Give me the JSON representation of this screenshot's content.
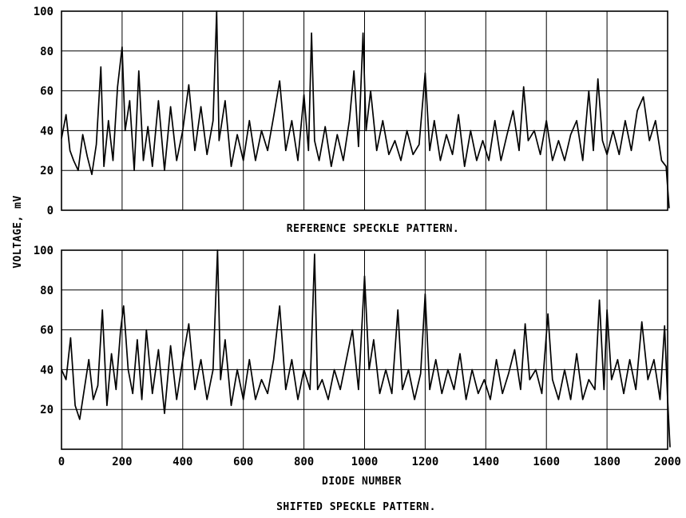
{
  "chart_data": [
    {
      "type": "line",
      "title": "",
      "caption": "REFERENCE SPECKLE PATTERN.",
      "xlabel": "",
      "ylabel": "VOLTAGE, mV",
      "xlim": [
        0,
        2000
      ],
      "ylim": [
        0,
        100
      ],
      "x_ticks": [
        0,
        200,
        400,
        600,
        800,
        1000,
        1200,
        1400,
        1600,
        1800,
        2000
      ],
      "y_ticks": [
        0,
        20,
        40,
        60,
        80,
        100
      ],
      "y_tick_labels": [
        "0",
        "20",
        "40",
        "60",
        "80",
        "100"
      ],
      "x_tick_labels_shown": false,
      "grid": true,
      "series": [
        {
          "points": [
            [
              0,
              36
            ],
            [
              15,
              48
            ],
            [
              28,
              30
            ],
            [
              40,
              25
            ],
            [
              55,
              20
            ],
            [
              70,
              38
            ],
            [
              85,
              27
            ],
            [
              100,
              18
            ],
            [
              115,
              33
            ],
            [
              130,
              72
            ],
            [
              140,
              22
            ],
            [
              155,
              45
            ],
            [
              170,
              25
            ],
            [
              185,
              62
            ],
            [
              200,
              82
            ],
            [
              210,
              40
            ],
            [
              225,
              55
            ],
            [
              240,
              20
            ],
            [
              255,
              70
            ],
            [
              270,
              25
            ],
            [
              285,
              42
            ],
            [
              300,
              22
            ],
            [
              320,
              55
            ],
            [
              340,
              20
            ],
            [
              360,
              52
            ],
            [
              380,
              25
            ],
            [
              400,
              40
            ],
            [
              420,
              63
            ],
            [
              440,
              30
            ],
            [
              460,
              52
            ],
            [
              480,
              28
            ],
            [
              500,
              45
            ],
            [
              512,
              100
            ],
            [
              520,
              35
            ],
            [
              540,
              55
            ],
            [
              560,
              22
            ],
            [
              580,
              38
            ],
            [
              600,
              25
            ],
            [
              620,
              45
            ],
            [
              640,
              25
            ],
            [
              660,
              40
            ],
            [
              680,
              30
            ],
            [
              700,
              47
            ],
            [
              720,
              65
            ],
            [
              740,
              30
            ],
            [
              760,
              45
            ],
            [
              780,
              25
            ],
            [
              800,
              58
            ],
            [
              815,
              30
            ],
            [
              825,
              89
            ],
            [
              835,
              35
            ],
            [
              850,
              25
            ],
            [
              870,
              42
            ],
            [
              890,
              22
            ],
            [
              910,
              38
            ],
            [
              930,
              25
            ],
            [
              950,
              45
            ],
            [
              965,
              70
            ],
            [
              980,
              32
            ],
            [
              995,
              89
            ],
            [
              1005,
              40
            ],
            [
              1020,
              60
            ],
            [
              1040,
              30
            ],
            [
              1060,
              45
            ],
            [
              1080,
              28
            ],
            [
              1100,
              35
            ],
            [
              1120,
              25
            ],
            [
              1140,
              40
            ],
            [
              1160,
              28
            ],
            [
              1180,
              33
            ],
            [
              1200,
              69
            ],
            [
              1215,
              30
            ],
            [
              1230,
              45
            ],
            [
              1250,
              25
            ],
            [
              1270,
              38
            ],
            [
              1290,
              28
            ],
            [
              1310,
              48
            ],
            [
              1330,
              22
            ],
            [
              1350,
              40
            ],
            [
              1370,
              25
            ],
            [
              1390,
              35
            ],
            [
              1410,
              25
            ],
            [
              1430,
              45
            ],
            [
              1450,
              25
            ],
            [
              1470,
              38
            ],
            [
              1490,
              50
            ],
            [
              1510,
              30
            ],
            [
              1525,
              62
            ],
            [
              1540,
              35
            ],
            [
              1560,
              40
            ],
            [
              1580,
              28
            ],
            [
              1600,
              45
            ],
            [
              1620,
              25
            ],
            [
              1640,
              35
            ],
            [
              1660,
              25
            ],
            [
              1680,
              38
            ],
            [
              1700,
              45
            ],
            [
              1720,
              25
            ],
            [
              1740,
              60
            ],
            [
              1755,
              30
            ],
            [
              1770,
              66
            ],
            [
              1785,
              35
            ],
            [
              1800,
              28
            ],
            [
              1820,
              40
            ],
            [
              1840,
              28
            ],
            [
              1860,
              45
            ],
            [
              1880,
              30
            ],
            [
              1900,
              50
            ],
            [
              1920,
              57
            ],
            [
              1940,
              35
            ],
            [
              1960,
              45
            ],
            [
              1980,
              25
            ],
            [
              1995,
              22
            ],
            [
              2005,
              1
            ]
          ]
        }
      ]
    },
    {
      "type": "line",
      "title": "",
      "caption": "SHIFTED SPECKLE PATTERN.",
      "xlabel": "DIODE NUMBER",
      "ylabel": "VOLTAGE, mV",
      "xlim": [
        0,
        2000
      ],
      "ylim": [
        0,
        100
      ],
      "x_ticks": [
        0,
        200,
        400,
        600,
        800,
        1000,
        1200,
        1400,
        1600,
        1800,
        2000
      ],
      "x_tick_labels": [
        "0",
        "200",
        "400",
        "600",
        "800",
        "1000",
        "1200",
        "1400",
        "1600",
        "1800",
        "2000"
      ],
      "y_ticks": [
        0,
        20,
        40,
        60,
        80,
        100
      ],
      "y_tick_labels": [
        "",
        "20",
        "40",
        "60",
        "80",
        "100"
      ],
      "grid": true,
      "series": [
        {
          "points": [
            [
              0,
              40
            ],
            [
              15,
              35
            ],
            [
              30,
              56
            ],
            [
              45,
              22
            ],
            [
              60,
              15
            ],
            [
              75,
              30
            ],
            [
              90,
              45
            ],
            [
              105,
              25
            ],
            [
              120,
              32
            ],
            [
              135,
              70
            ],
            [
              150,
              22
            ],
            [
              165,
              48
            ],
            [
              180,
              30
            ],
            [
              195,
              60
            ],
            [
              205,
              72
            ],
            [
              220,
              40
            ],
            [
              235,
              28
            ],
            [
              250,
              55
            ],
            [
              265,
              25
            ],
            [
              280,
              60
            ],
            [
              300,
              28
            ],
            [
              320,
              50
            ],
            [
              340,
              18
            ],
            [
              360,
              52
            ],
            [
              380,
              25
            ],
            [
              400,
              45
            ],
            [
              420,
              63
            ],
            [
              440,
              30
            ],
            [
              460,
              45
            ],
            [
              480,
              25
            ],
            [
              500,
              40
            ],
            [
              515,
              100
            ],
            [
              525,
              35
            ],
            [
              540,
              55
            ],
            [
              560,
              22
            ],
            [
              580,
              40
            ],
            [
              600,
              25
            ],
            [
              620,
              45
            ],
            [
              640,
              25
            ],
            [
              660,
              35
            ],
            [
              680,
              28
            ],
            [
              700,
              45
            ],
            [
              720,
              72
            ],
            [
              740,
              30
            ],
            [
              760,
              45
            ],
            [
              780,
              25
            ],
            [
              800,
              40
            ],
            [
              820,
              30
            ],
            [
              835,
              98
            ],
            [
              845,
              30
            ],
            [
              860,
              35
            ],
            [
              880,
              25
            ],
            [
              900,
              40
            ],
            [
              920,
              30
            ],
            [
              940,
              45
            ],
            [
              960,
              60
            ],
            [
              980,
              30
            ],
            [
              1000,
              87
            ],
            [
              1015,
              40
            ],
            [
              1030,
              55
            ],
            [
              1050,
              28
            ],
            [
              1070,
              40
            ],
            [
              1090,
              28
            ],
            [
              1110,
              70
            ],
            [
              1125,
              30
            ],
            [
              1145,
              40
            ],
            [
              1165,
              25
            ],
            [
              1185,
              38
            ],
            [
              1200,
              78
            ],
            [
              1215,
              30
            ],
            [
              1235,
              45
            ],
            [
              1255,
              28
            ],
            [
              1275,
              40
            ],
            [
              1295,
              30
            ],
            [
              1315,
              48
            ],
            [
              1335,
              25
            ],
            [
              1355,
              40
            ],
            [
              1375,
              28
            ],
            [
              1395,
              35
            ],
            [
              1415,
              25
            ],
            [
              1435,
              45
            ],
            [
              1455,
              28
            ],
            [
              1475,
              38
            ],
            [
              1495,
              50
            ],
            [
              1515,
              30
            ],
            [
              1530,
              63
            ],
            [
              1545,
              35
            ],
            [
              1565,
              40
            ],
            [
              1585,
              28
            ],
            [
              1605,
              68
            ],
            [
              1620,
              35
            ],
            [
              1640,
              25
            ],
            [
              1660,
              40
            ],
            [
              1680,
              25
            ],
            [
              1700,
              48
            ],
            [
              1720,
              25
            ],
            [
              1740,
              35
            ],
            [
              1760,
              30
            ],
            [
              1775,
              75
            ],
            [
              1790,
              30
            ],
            [
              1800,
              70
            ],
            [
              1815,
              35
            ],
            [
              1835,
              45
            ],
            [
              1855,
              28
            ],
            [
              1875,
              45
            ],
            [
              1895,
              30
            ],
            [
              1915,
              64
            ],
            [
              1935,
              35
            ],
            [
              1955,
              45
            ],
            [
              1975,
              25
            ],
            [
              1990,
              62
            ],
            [
              2000,
              25
            ],
            [
              2008,
              1
            ]
          ]
        }
      ]
    }
  ]
}
